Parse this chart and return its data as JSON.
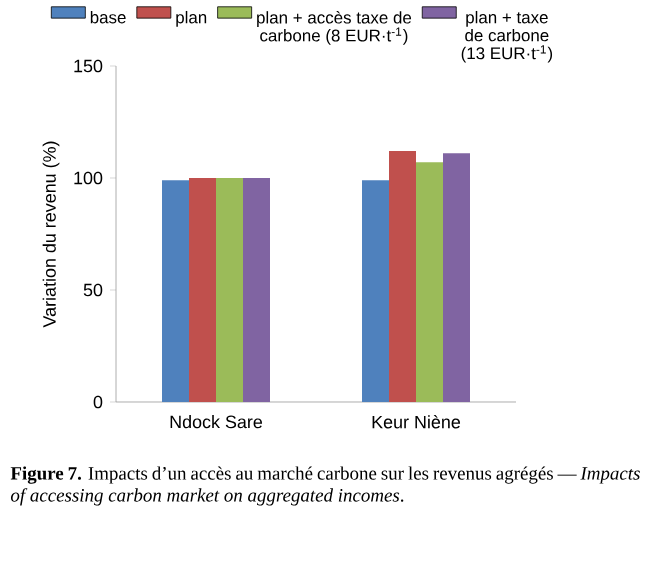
{
  "chart_data": {
    "type": "bar",
    "categories": [
      "Ndock Sare",
      "Keur Niène"
    ],
    "series": [
      {
        "name": "base",
        "color": "#4f81bd",
        "values": [
          99,
          99
        ]
      },
      {
        "name": "plan",
        "color": "#c0504d",
        "values": [
          100,
          112
        ]
      },
      {
        "name": "plan + accès taxe de carbone (8 EUR·t$^{-1}$)",
        "color": "#9bbb59",
        "values": [
          100,
          107
        ]
      },
      {
        "name": "plan + taxe de carbone (13 EUR·t$^{-1}$)",
        "color": "#8064a2",
        "values": [
          100,
          111
        ]
      }
    ],
    "ylabel": "Variation du revenu (%)",
    "ylim": [
      0,
      150
    ],
    "yticks": [
      0,
      50,
      100,
      150
    ],
    "legend": "top",
    "grid": false,
    "annotations": [
      "**Figure 7.** Impacts d’un accès au marché carbone sur les revenus agrégés — *Impacts of accessing carbon market on aggregated incomes*."
    ]
  }
}
